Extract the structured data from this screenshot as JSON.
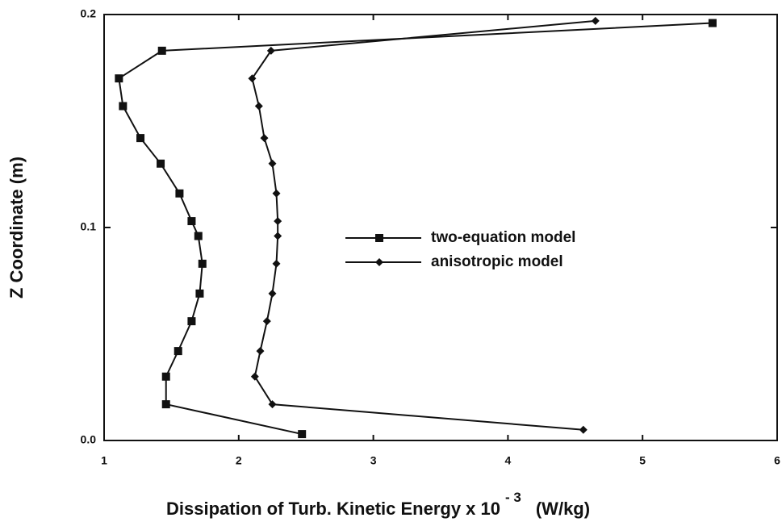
{
  "chart_data": {
    "type": "line",
    "ylabel": "Z Coordinate  (m)",
    "xlabel": "Dissipation of Turb. Kinetic Energy x 10",
    "xlabel_exponent": "- 3",
    "xlabel_unit": "(W/kg)",
    "xlim": [
      1,
      6
    ],
    "xticks": [
      1,
      2,
      3,
      4,
      5,
      6
    ],
    "ylim": [
      0,
      0.2
    ],
    "yticks": [
      {
        "value": 0,
        "label": "0.0"
      },
      0.1,
      0.2
    ],
    "legend": "center",
    "series": [
      {
        "name": "two-equation  model",
        "color": "#111111",
        "marker": "square",
        "x": [
          5.52,
          1.43,
          1.11,
          1.14,
          1.27,
          1.42,
          1.56,
          1.65,
          1.7,
          1.73,
          1.71,
          1.65,
          1.55,
          1.46,
          1.46,
          2.47
        ],
        "y": [
          0.196,
          0.183,
          0.17,
          0.157,
          0.142,
          0.13,
          0.116,
          0.103,
          0.096,
          0.083,
          0.069,
          0.056,
          0.042,
          0.03,
          0.017,
          0.003
        ]
      },
      {
        "name": "anisotropic  model",
        "color": "#111111",
        "marker": "diamond",
        "x": [
          4.65,
          2.24,
          2.1,
          2.15,
          2.19,
          2.25,
          2.28,
          2.29,
          2.29,
          2.28,
          2.25,
          2.21,
          2.16,
          2.12,
          2.25,
          4.56
        ],
        "y": [
          0.197,
          0.183,
          0.17,
          0.157,
          0.142,
          0.13,
          0.116,
          0.103,
          0.096,
          0.083,
          0.069,
          0.056,
          0.042,
          0.03,
          0.017,
          0.005
        ]
      }
    ]
  }
}
